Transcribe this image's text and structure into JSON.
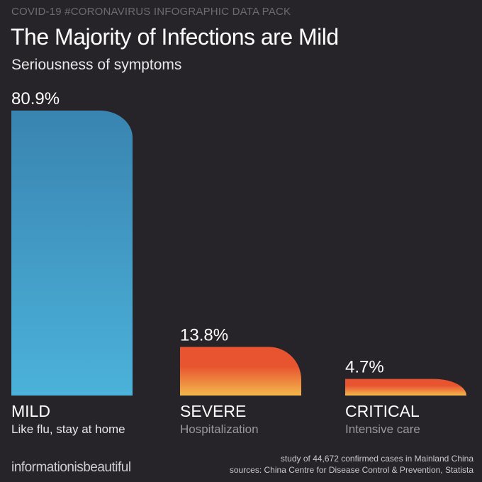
{
  "header": {
    "kicker": "COVID-19 #CORONAVIRUS INFOGRAPHIC DATA PACK",
    "title": "The Majority of Infections are Mild",
    "subtitle": "Seriousness of symptoms"
  },
  "chart_data": {
    "type": "bar",
    "title": "The Majority of Infections are Mild",
    "subtitle": "Seriousness of symptoms",
    "categories": [
      "MILD",
      "SEVERE",
      "CRITICAL"
    ],
    "descriptions": [
      "Like flu, stay at home",
      "Hospitalization",
      "Intensive care"
    ],
    "values": [
      80.9,
      13.8,
      4.7
    ],
    "value_labels": [
      "80.9%",
      "13.8%",
      "4.7%"
    ],
    "unit": "%",
    "ylim": [
      0,
      80.9
    ],
    "grid": false,
    "colors": [
      {
        "top": "#3984b0",
        "bottom": "#4bb2da"
      },
      {
        "top": "#e85430",
        "bottom": "#f3b84c"
      },
      {
        "top": "#e85430",
        "bottom": "#f3b84c"
      }
    ],
    "description_colors": [
      "#e6e6e6",
      "#9a989c",
      "#9a989c"
    ]
  },
  "footer": {
    "brand": "informationisbeautiful",
    "note": "study of 44,672 confirmed cases in Mainland China",
    "sources": "sources: China Centre for Disease Control & Prevention, Statista"
  }
}
